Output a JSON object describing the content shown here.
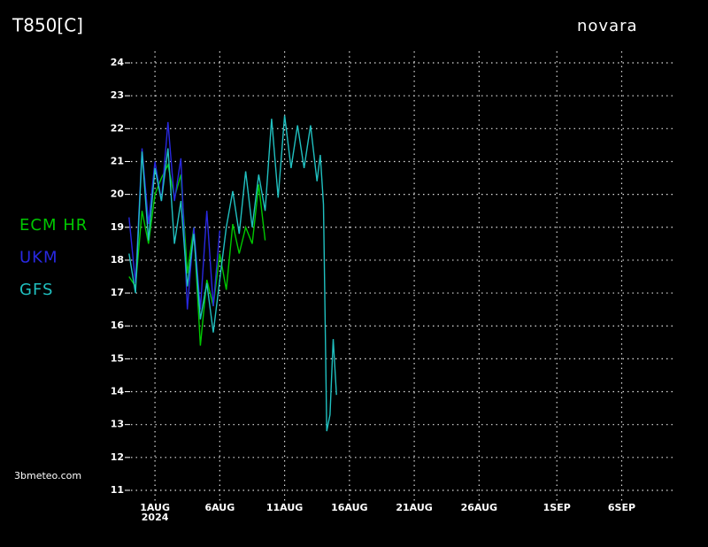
{
  "chart_data": {
    "type": "line",
    "title": "T850[C]",
    "location": "novara",
    "watermark": "3bmeteo.com",
    "x_year_label": "2024",
    "xlim": [
      -1.85,
      40.2
    ],
    "ylim": [
      10.8,
      24.2
    ],
    "xticks": [
      {
        "value": 0,
        "label": "1AUG"
      },
      {
        "value": 5,
        "label": "6AUG"
      },
      {
        "value": 10,
        "label": "11AUG"
      },
      {
        "value": 15,
        "label": "16AUG"
      },
      {
        "value": 20,
        "label": "21AUG"
      },
      {
        "value": 25,
        "label": "26AUG"
      },
      {
        "value": 31,
        "label": "1SEP"
      },
      {
        "value": 36,
        "label": "6SEP"
      }
    ],
    "yticks": [
      11,
      12,
      13,
      14,
      15,
      16,
      17,
      18,
      19,
      20,
      21,
      22,
      23,
      24
    ],
    "grid": true,
    "series": [
      {
        "name": "ECM HR",
        "color": "#00c800",
        "x": [
          -2,
          -1.5,
          -1,
          -0.5,
          0,
          0.5,
          1,
          1.5,
          2,
          2.5,
          3,
          3.5,
          4,
          4.5,
          5,
          5.5,
          6,
          6.5,
          7,
          7.5,
          8,
          8.5
        ],
        "values": [
          17.5,
          17.2,
          19.5,
          18.5,
          20.0,
          20.5,
          20.9,
          19.9,
          20.6,
          17.6,
          19.0,
          15.4,
          17.4,
          16.6,
          18.2,
          17.1,
          19.1,
          18.2,
          19.0,
          18.5,
          20.3,
          18.6
        ]
      },
      {
        "name": "UKM",
        "color": "#2828e0",
        "x": [
          -2,
          -1.5,
          -1,
          -0.5,
          0,
          0.5,
          1,
          1.5,
          2,
          2.5,
          3,
          3.5,
          4,
          4.5,
          5
        ],
        "values": [
          19.3,
          17.3,
          21.4,
          19.1,
          21.0,
          19.8,
          22.2,
          19.8,
          21.1,
          16.5,
          19.0,
          16.5,
          19.5,
          16.6,
          18.9
        ]
      },
      {
        "name": "GFS",
        "color": "#20c0c0",
        "x": [
          -2,
          -1.5,
          -1,
          -0.5,
          0,
          0.5,
          1,
          1.5,
          2,
          2.5,
          3,
          3.5,
          4,
          4.5,
          5,
          5.5,
          6,
          6.5,
          7,
          7.5,
          8,
          8.5,
          9,
          9.5,
          10,
          10.5,
          11,
          11.5,
          12,
          12.5,
          12.75,
          13,
          13.25,
          13.5,
          13.75,
          14
        ],
        "values": [
          18.2,
          17.0,
          21.3,
          18.6,
          20.8,
          19.8,
          21.4,
          18.5,
          19.8,
          17.2,
          18.8,
          16.2,
          17.3,
          15.8,
          17.4,
          19.0,
          20.1,
          18.8,
          20.7,
          19.0,
          20.6,
          19.5,
          22.3,
          19.9,
          22.4,
          20.8,
          22.1,
          20.8,
          22.1,
          20.4,
          21.2,
          19.7,
          12.8,
          13.3,
          15.6,
          13.9
        ]
      }
    ]
  }
}
